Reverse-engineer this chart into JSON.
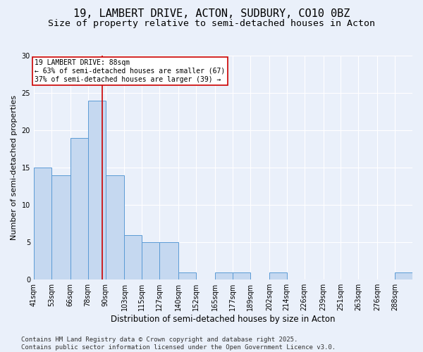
{
  "title": "19, LAMBERT DRIVE, ACTON, SUDBURY, CO10 0BZ",
  "subtitle": "Size of property relative to semi-detached houses in Acton",
  "xlabel": "Distribution of semi-detached houses by size in Acton",
  "ylabel": "Number of semi-detached properties",
  "bin_edges": [
    41,
    53,
    66,
    78,
    90,
    103,
    115,
    127,
    140,
    152,
    165,
    177,
    189,
    202,
    214,
    226,
    239,
    251,
    263,
    276,
    288
  ],
  "bin_labels": [
    "41sqm",
    "53sqm",
    "66sqm",
    "78sqm",
    "90sqm",
    "103sqm",
    "115sqm",
    "127sqm",
    "140sqm",
    "152sqm",
    "165sqm",
    "177sqm",
    "189sqm",
    "202sqm",
    "214sqm",
    "226sqm",
    "239sqm",
    "251sqm",
    "263sqm",
    "276sqm",
    "288sqm"
  ],
  "values": [
    15,
    14,
    19,
    24,
    14,
    6,
    5,
    5,
    1,
    0,
    1,
    1,
    0,
    1,
    0,
    0,
    0,
    0,
    0,
    0,
    1
  ],
  "bar_color": "#c5d8f0",
  "bar_edge_color": "#5b9bd5",
  "bar_linewidth": 0.7,
  "property_size": 88,
  "vline_color": "#cc0000",
  "annotation_text": "19 LAMBERT DRIVE: 88sqm\n← 63% of semi-detached houses are smaller (67)\n37% of semi-detached houses are larger (39) →",
  "annotation_box_color": "#ffffff",
  "annotation_box_edge": "#cc0000",
  "ylim": [
    0,
    30
  ],
  "yticks": [
    0,
    5,
    10,
    15,
    20,
    25,
    30
  ],
  "footer": "Contains HM Land Registry data © Crown copyright and database right 2025.\nContains public sector information licensed under the Open Government Licence v3.0.",
  "bg_color": "#eaf0fa",
  "plot_bg_color": "#eaf0fa",
  "grid_color": "#ffffff",
  "title_fontsize": 11,
  "subtitle_fontsize": 9.5,
  "xlabel_fontsize": 8.5,
  "ylabel_fontsize": 8,
  "tick_fontsize": 7,
  "footer_fontsize": 6.5,
  "annotation_fontsize": 7
}
